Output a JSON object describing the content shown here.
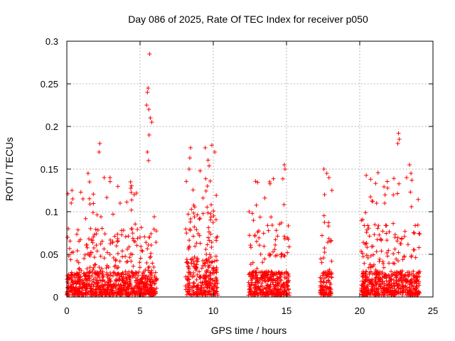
{
  "chart_data": {
    "type": "scatter",
    "title": "Day 086 of 2025, Rate Of TEC Index for receiver p050",
    "xlabel": "GPS time / hours",
    "ylabel": "ROTI / TECUs",
    "xlim": [
      0,
      25
    ],
    "ylim": [
      0,
      0.3
    ],
    "x_ticks": [
      0,
      5,
      10,
      15,
      20,
      25
    ],
    "x_tick_labels": [
      "0",
      "5",
      "10",
      "15",
      "20",
      "25"
    ],
    "y_ticks": [
      0,
      0.05,
      0.1,
      0.15,
      0.2,
      0.25,
      0.3
    ],
    "y_tick_labels": [
      "0",
      "0.05",
      "0.1",
      "0.15",
      "0.2",
      "0.25",
      "0.3"
    ],
    "grid": true,
    "marker": "plus",
    "marker_color": "#ff0000",
    "series": [
      {
        "name": "ROTI",
        "segments": [
          {
            "start": 0.0,
            "end": 6.15,
            "base": 0.02,
            "peak": 0.14
          },
          {
            "start": 8.1,
            "end": 10.3,
            "base": 0.03,
            "peak": 0.17
          },
          {
            "start": 12.4,
            "end": 15.2,
            "base": 0.02,
            "peak": 0.15
          },
          {
            "start": 17.3,
            "end": 18.1,
            "base": 0.02,
            "peak": 0.15
          },
          {
            "start": 20.1,
            "end": 24.1,
            "base": 0.02,
            "peak": 0.15
          }
        ],
        "points": [
          [
            5.65,
            0.285
          ],
          [
            5.55,
            0.245
          ],
          [
            5.5,
            0.24
          ],
          [
            5.45,
            0.225
          ],
          [
            5.6,
            0.22
          ],
          [
            5.7,
            0.21
          ],
          [
            5.8,
            0.205
          ],
          [
            5.62,
            0.19
          ],
          [
            5.5,
            0.17
          ],
          [
            5.58,
            0.16
          ],
          [
            2.25,
            0.18
          ],
          [
            2.2,
            0.17
          ],
          [
            1.45,
            0.145
          ],
          [
            1.55,
            0.135
          ],
          [
            2.55,
            0.14
          ],
          [
            2.95,
            0.14
          ],
          [
            4.35,
            0.135
          ],
          [
            4.6,
            0.12
          ],
          [
            0.35,
            0.125
          ],
          [
            0.4,
            0.115
          ],
          [
            8.45,
            0.175
          ],
          [
            9.45,
            0.175
          ],
          [
            9.9,
            0.178
          ],
          [
            10.1,
            0.17
          ],
          [
            8.35,
            0.15
          ],
          [
            9.6,
            0.13
          ],
          [
            13.85,
            0.135
          ],
          [
            14.85,
            0.155
          ],
          [
            14.9,
            0.15
          ],
          [
            12.45,
            0.1
          ],
          [
            17.55,
            0.15
          ],
          [
            17.75,
            0.145
          ],
          [
            17.9,
            0.14
          ],
          [
            17.6,
            0.12
          ],
          [
            22.65,
            0.192
          ],
          [
            22.7,
            0.185
          ],
          [
            22.6,
            0.18
          ],
          [
            23.4,
            0.155
          ],
          [
            23.5,
            0.145
          ],
          [
            21.15,
            0.11
          ],
          [
            21.7,
            0.11
          ],
          [
            0.1,
            0.08
          ],
          [
            0.05,
            0.07
          ],
          [
            23.2,
            0.14
          ]
        ]
      }
    ]
  }
}
